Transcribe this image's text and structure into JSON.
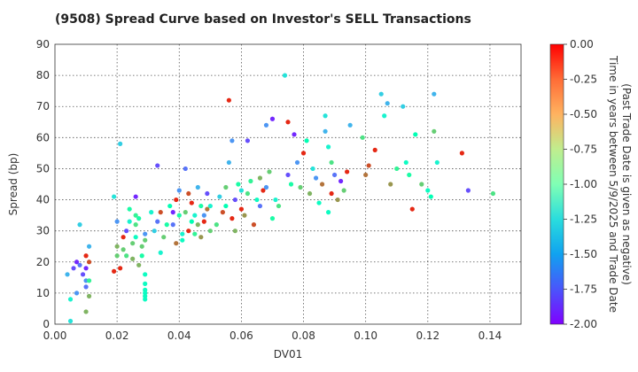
{
  "chart_data": {
    "type": "scatter",
    "title": "(9508)   Spread Curve based on Investor's SELL Transactions",
    "xlabel": "DV01",
    "ylabel": "Spread (bp)",
    "xlim": [
      0.0,
      0.15
    ],
    "ylim": [
      0,
      90
    ],
    "xticks": [
      "0.00",
      "0.02",
      "0.04",
      "0.06",
      "0.08",
      "0.10",
      "0.12",
      "0.14"
    ],
    "yticks": [
      "0",
      "10",
      "20",
      "30",
      "40",
      "50",
      "60",
      "70",
      "80",
      "90"
    ],
    "grid": true,
    "colorbar": {
      "label_line1": "Time in years between 5/9/2025 and Trade Date",
      "label_line2": "(Past Trade Date is given as negative)",
      "range": [
        -2.0,
        0.0
      ],
      "ticks": [
        "0.00",
        "-0.25",
        "-0.50",
        "-0.75",
        "-1.00",
        "-1.25",
        "-1.50",
        "-1.75",
        "-2.00"
      ],
      "colormap": "rainbow"
    },
    "points": [
      [
        0.004,
        16,
        -1.5
      ],
      [
        0.005,
        8,
        -1.2
      ],
      [
        0.005,
        1,
        -1.3
      ],
      [
        0.006,
        18,
        -1.8
      ],
      [
        0.007,
        10,
        -1.6
      ],
      [
        0.007,
        20,
        -1.9
      ],
      [
        0.008,
        32,
        -1.4
      ],
      [
        0.008,
        19,
        -1.7
      ],
      [
        0.009,
        16,
        -1.8
      ],
      [
        0.01,
        4,
        -0.5
      ],
      [
        0.01,
        14,
        -1.6
      ],
      [
        0.01,
        22,
        -0.1
      ],
      [
        0.01,
        18,
        -1.9
      ],
      [
        0.01,
        12,
        -1.7
      ],
      [
        0.011,
        25,
        -1.5
      ],
      [
        0.011,
        14,
        -0.8
      ],
      [
        0.011,
        9,
        -0.5
      ],
      [
        0.011,
        20,
        -0.2
      ],
      [
        0.019,
        17,
        -0.1
      ],
      [
        0.019,
        41,
        -1.3
      ],
      [
        0.02,
        33,
        -1.6
      ],
      [
        0.02,
        25,
        -0.5
      ],
      [
        0.02,
        22,
        -0.6
      ],
      [
        0.021,
        58,
        -1.4
      ],
      [
        0.021,
        18,
        -0.1
      ],
      [
        0.022,
        28,
        -0.1
      ],
      [
        0.022,
        24,
        -0.6
      ],
      [
        0.023,
        30,
        -1.8
      ],
      [
        0.023,
        22,
        -0.7
      ],
      [
        0.024,
        37,
        -0.9
      ],
      [
        0.024,
        33,
        -1.2
      ],
      [
        0.025,
        26,
        -0.6
      ],
      [
        0.025,
        21,
        -0.5
      ],
      [
        0.026,
        32,
        -0.7
      ],
      [
        0.026,
        28,
        -1.1
      ],
      [
        0.026,
        41,
        -1.9
      ],
      [
        0.026,
        35,
        -0.8
      ],
      [
        0.027,
        34,
        -0.9
      ],
      [
        0.027,
        19,
        -0.5
      ],
      [
        0.028,
        25,
        -0.6
      ],
      [
        0.028,
        22,
        -0.9
      ],
      [
        0.029,
        29,
        -1.6
      ],
      [
        0.029,
        16,
        -1.1
      ],
      [
        0.029,
        13,
        -1.1
      ],
      [
        0.029,
        11,
        -1.1
      ],
      [
        0.029,
        10,
        -1.1
      ],
      [
        0.029,
        9,
        -1.1
      ],
      [
        0.029,
        8,
        -1.1
      ],
      [
        0.029,
        27,
        -0.6
      ],
      [
        0.031,
        36,
        -1.2
      ],
      [
        0.032,
        30,
        -1.4
      ],
      [
        0.033,
        51,
        -1.8
      ],
      [
        0.033,
        33,
        -1.7
      ],
      [
        0.034,
        23,
        -1.2
      ],
      [
        0.034,
        36,
        -0.2
      ],
      [
        0.035,
        28,
        -0.6
      ],
      [
        0.036,
        32,
        -0.9
      ],
      [
        0.037,
        38,
        -1.0
      ],
      [
        0.038,
        32,
        -1.7
      ],
      [
        0.038,
        36,
        -1.9
      ],
      [
        0.039,
        40,
        -0.1
      ],
      [
        0.039,
        26,
        -0.3
      ],
      [
        0.04,
        43,
        -1.6
      ],
      [
        0.04,
        35,
        -0.9
      ],
      [
        0.041,
        29,
        -1.2
      ],
      [
        0.041,
        27,
        -1.1
      ],
      [
        0.042,
        36,
        -0.6
      ],
      [
        0.042,
        50,
        -1.7
      ],
      [
        0.043,
        30,
        -0.1
      ],
      [
        0.043,
        42,
        -0.2
      ],
      [
        0.044,
        33,
        -1.0
      ],
      [
        0.044,
        39,
        -0.1
      ],
      [
        0.045,
        35,
        -1.2
      ],
      [
        0.045,
        29,
        -0.8
      ],
      [
        0.046,
        32,
        -0.5
      ],
      [
        0.046,
        44,
        -1.5
      ],
      [
        0.047,
        28,
        -0.4
      ],
      [
        0.047,
        38,
        -0.9
      ],
      [
        0.048,
        33,
        -0.1
      ],
      [
        0.048,
        35,
        -1.6
      ],
      [
        0.049,
        37,
        -0.3
      ],
      [
        0.049,
        42,
        -1.8
      ],
      [
        0.05,
        30,
        -0.6
      ],
      [
        0.05,
        38,
        -1.2
      ],
      [
        0.052,
        32,
        -0.7
      ],
      [
        0.053,
        41,
        -1.4
      ],
      [
        0.054,
        36,
        -0.2
      ],
      [
        0.055,
        44,
        -0.6
      ],
      [
        0.055,
        38,
        -1.0
      ],
      [
        0.056,
        72,
        -0.1
      ],
      [
        0.056,
        52,
        -1.5
      ],
      [
        0.057,
        59,
        -1.6
      ],
      [
        0.057,
        34,
        -0.1
      ],
      [
        0.058,
        40,
        -1.8
      ],
      [
        0.058,
        30,
        -0.5
      ],
      [
        0.059,
        45,
        -0.9
      ],
      [
        0.06,
        37,
        -0.1
      ],
      [
        0.06,
        43,
        -1.3
      ],
      [
        0.061,
        35,
        -0.4
      ],
      [
        0.062,
        42,
        -0.7
      ],
      [
        0.062,
        59,
        -1.8
      ],
      [
        0.063,
        46,
        -0.8
      ],
      [
        0.064,
        32,
        -0.2
      ],
      [
        0.065,
        40,
        -1.1
      ],
      [
        0.066,
        47,
        -0.5
      ],
      [
        0.066,
        38,
        -1.7
      ],
      [
        0.067,
        43,
        -0.1
      ],
      [
        0.068,
        44,
        -1.6
      ],
      [
        0.068,
        64,
        -1.6
      ],
      [
        0.069,
        49,
        -0.6
      ],
      [
        0.07,
        66,
        -1.9
      ],
      [
        0.07,
        34,
        -0.9
      ],
      [
        0.071,
        40,
        -1.2
      ],
      [
        0.072,
        38,
        -0.7
      ],
      [
        0.074,
        80,
        -1.3
      ],
      [
        0.075,
        65,
        -0.1
      ],
      [
        0.075,
        48,
        -1.8
      ],
      [
        0.076,
        45,
        -0.9
      ],
      [
        0.077,
        61,
        -1.9
      ],
      [
        0.078,
        52,
        -1.6
      ],
      [
        0.079,
        44,
        -0.6
      ],
      [
        0.08,
        55,
        -0.1
      ],
      [
        0.081,
        59,
        -1.0
      ],
      [
        0.082,
        42,
        -0.5
      ],
      [
        0.083,
        50,
        -1.3
      ],
      [
        0.084,
        47,
        -1.6
      ],
      [
        0.085,
        39,
        -1.1
      ],
      [
        0.086,
        45,
        -0.3
      ],
      [
        0.087,
        67,
        -1.3
      ],
      [
        0.087,
        62,
        -1.5
      ],
      [
        0.088,
        57,
        -1.2
      ],
      [
        0.088,
        36,
        -1.1
      ],
      [
        0.089,
        52,
        -0.7
      ],
      [
        0.089,
        42,
        -0.1
      ],
      [
        0.09,
        48,
        -1.7
      ],
      [
        0.091,
        40,
        -0.4
      ],
      [
        0.092,
        46,
        -1.9
      ],
      [
        0.093,
        43,
        -0.6
      ],
      [
        0.094,
        49,
        -0.1
      ],
      [
        0.095,
        64,
        -1.5
      ],
      [
        0.099,
        60,
        -0.7
      ],
      [
        0.1,
        48,
        -0.3
      ],
      [
        0.101,
        51,
        -0.2
      ],
      [
        0.103,
        56,
        -0.1
      ],
      [
        0.105,
        74,
        -1.4
      ],
      [
        0.106,
        67,
        -1.2
      ],
      [
        0.107,
        71,
        -1.5
      ],
      [
        0.108,
        45,
        -0.4
      ],
      [
        0.11,
        50,
        -0.8
      ],
      [
        0.112,
        70,
        -1.4
      ],
      [
        0.113,
        52,
        -1.1
      ],
      [
        0.114,
        48,
        -0.9
      ],
      [
        0.115,
        37,
        -0.1
      ],
      [
        0.116,
        61,
        -1.0
      ],
      [
        0.118,
        45,
        -0.6
      ],
      [
        0.12,
        43,
        -1.1
      ],
      [
        0.121,
        41,
        -1.0
      ],
      [
        0.122,
        74,
        -1.5
      ],
      [
        0.122,
        62,
        -0.6
      ],
      [
        0.123,
        52,
        -1.2
      ],
      [
        0.131,
        55,
        -0.1
      ],
      [
        0.133,
        43,
        -1.8
      ],
      [
        0.141,
        42,
        -0.7
      ]
    ]
  }
}
